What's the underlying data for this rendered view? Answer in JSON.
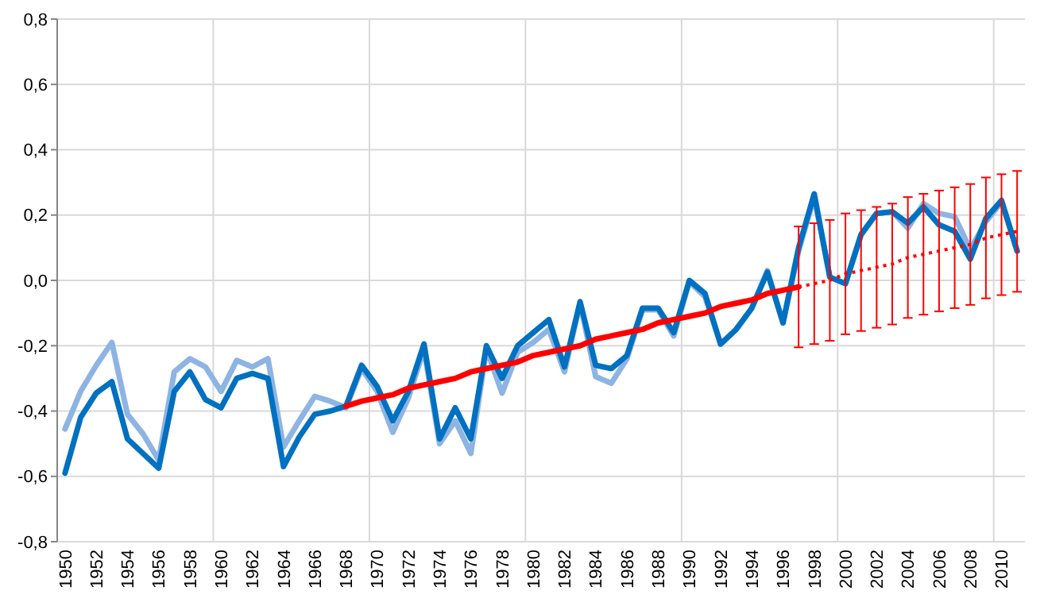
{
  "chart_data": {
    "type": "line",
    "categories": [
      "1950",
      null,
      "1952",
      null,
      "1954",
      null,
      "1956",
      null,
      "1958",
      null,
      "1960",
      null,
      "1962",
      null,
      "1964",
      null,
      "1966",
      null,
      "1968",
      null,
      "1970",
      null,
      "1972",
      null,
      "1974",
      null,
      "1976",
      null,
      "1978",
      null,
      "1980",
      null,
      "1982",
      null,
      "1984",
      null,
      "1986",
      null,
      "1988",
      null,
      "1990",
      null,
      "1992",
      null,
      "1994",
      null,
      "1996",
      null,
      "1998",
      null,
      "2000",
      null,
      "2002",
      null,
      "2004",
      null,
      "2006",
      null,
      "2008",
      null,
      "2010",
      null
    ],
    "ylim": [
      -0.8,
      0.8
    ],
    "yticks": [
      {
        "value": -0.8,
        "label": "-0,8"
      },
      {
        "value": -0.6,
        "label": "-0,6"
      },
      {
        "value": -0.4,
        "label": "-0,4"
      },
      {
        "value": -0.2,
        "label": "-0,2"
      },
      {
        "value": 0,
        "label": "0,0"
      },
      {
        "value": 0.2,
        "label": "0,2"
      },
      {
        "value": 0.4,
        "label": "0,4"
      },
      {
        "value": 0.6,
        "label": "0,6"
      },
      {
        "value": 0.8,
        "label": "0,8"
      }
    ],
    "grid": true,
    "marker": "none",
    "series": [
      {
        "color": "#8db4e2",
        "values": [
          -0.455,
          -0.34,
          -0.26,
          -0.19,
          -0.41,
          -0.47,
          -0.55,
          -0.28,
          -0.24,
          -0.265,
          -0.34,
          -0.245,
          -0.265,
          -0.24,
          -0.51,
          -0.43,
          -0.355,
          -0.37,
          -0.39,
          -0.27,
          -0.34,
          -0.465,
          -0.36,
          -0.21,
          -0.5,
          -0.43,
          -0.53,
          -0.21,
          -0.345,
          -0.22,
          -0.19,
          -0.15,
          -0.28,
          -0.07,
          -0.295,
          -0.315,
          -0.24,
          -0.09,
          -0.09,
          -0.17,
          -0.005,
          -0.05,
          -0.195,
          -0.15,
          -0.085,
          0.03,
          -0.13,
          0.09,
          0.255,
          0.01,
          -0.01,
          0.14,
          0.205,
          0.21,
          0.16,
          0.235,
          0.205,
          0.195,
          0.095,
          0.18,
          0.24,
          0.09
        ]
      },
      {
        "color": "#0070c0",
        "values": [
          -0.59,
          -0.42,
          -0.345,
          -0.31,
          -0.485,
          -0.53,
          -0.575,
          -0.34,
          -0.28,
          -0.365,
          -0.39,
          -0.3,
          -0.285,
          -0.3,
          -0.57,
          -0.48,
          -0.41,
          -0.4,
          -0.385,
          -0.26,
          -0.325,
          -0.43,
          -0.34,
          -0.195,
          -0.485,
          -0.39,
          -0.485,
          -0.2,
          -0.3,
          -0.2,
          -0.16,
          -0.12,
          -0.265,
          -0.065,
          -0.26,
          -0.27,
          -0.23,
          -0.085,
          -0.085,
          -0.16,
          0.0,
          -0.04,
          -0.195,
          -0.15,
          -0.085,
          0.025,
          -0.13,
          0.1,
          0.265,
          0.01,
          -0.01,
          0.14,
          0.205,
          0.21,
          0.175,
          0.225,
          0.17,
          0.15,
          0.065,
          0.19,
          0.245,
          0.09
        ]
      },
      {
        "color": "#ff0000",
        "values": [
          null,
          null,
          null,
          null,
          null,
          null,
          null,
          null,
          null,
          null,
          null,
          null,
          null,
          null,
          null,
          null,
          null,
          null,
          -0.385,
          -0.37,
          -0.36,
          -0.35,
          -0.33,
          -0.32,
          -0.31,
          -0.3,
          -0.28,
          -0.27,
          -0.26,
          -0.25,
          -0.23,
          -0.22,
          -0.21,
          -0.2,
          -0.18,
          -0.17,
          -0.16,
          -0.15,
          -0.13,
          -0.12,
          -0.11,
          -0.1,
          -0.08,
          -0.07,
          -0.06,
          -0.04,
          -0.03,
          -0.02,
          null,
          null,
          null,
          null,
          null,
          null,
          null,
          null,
          null,
          null,
          null,
          null,
          null,
          null
        ]
      },
      {
        "color": "#ff0000",
        "line_style": "dotted",
        "values": [
          null,
          null,
          null,
          null,
          null,
          null,
          null,
          null,
          null,
          null,
          null,
          null,
          null,
          null,
          null,
          null,
          null,
          null,
          null,
          null,
          null,
          null,
          null,
          null,
          null,
          null,
          null,
          null,
          null,
          null,
          null,
          null,
          null,
          null,
          null,
          null,
          null,
          null,
          null,
          null,
          null,
          null,
          null,
          null,
          null,
          null,
          null,
          -0.02,
          -0.01,
          0.0,
          0.02,
          0.03,
          0.04,
          0.05,
          0.07,
          0.08,
          0.09,
          0.1,
          0.11,
          0.13,
          0.14,
          0.15
        ],
        "errors": [
          null,
          null,
          null,
          null,
          null,
          null,
          null,
          null,
          null,
          null,
          null,
          null,
          null,
          null,
          null,
          null,
          null,
          null,
          null,
          null,
          null,
          null,
          null,
          null,
          null,
          null,
          null,
          null,
          null,
          null,
          null,
          null,
          null,
          null,
          null,
          null,
          null,
          null,
          null,
          null,
          null,
          null,
          null,
          null,
          null,
          null,
          null,
          0.185,
          0.185,
          0.185,
          0.185,
          0.185,
          0.185,
          0.185,
          0.185,
          0.185,
          0.185,
          0.185,
          0.185,
          0.185,
          0.185,
          0.185
        ]
      }
    ]
  }
}
